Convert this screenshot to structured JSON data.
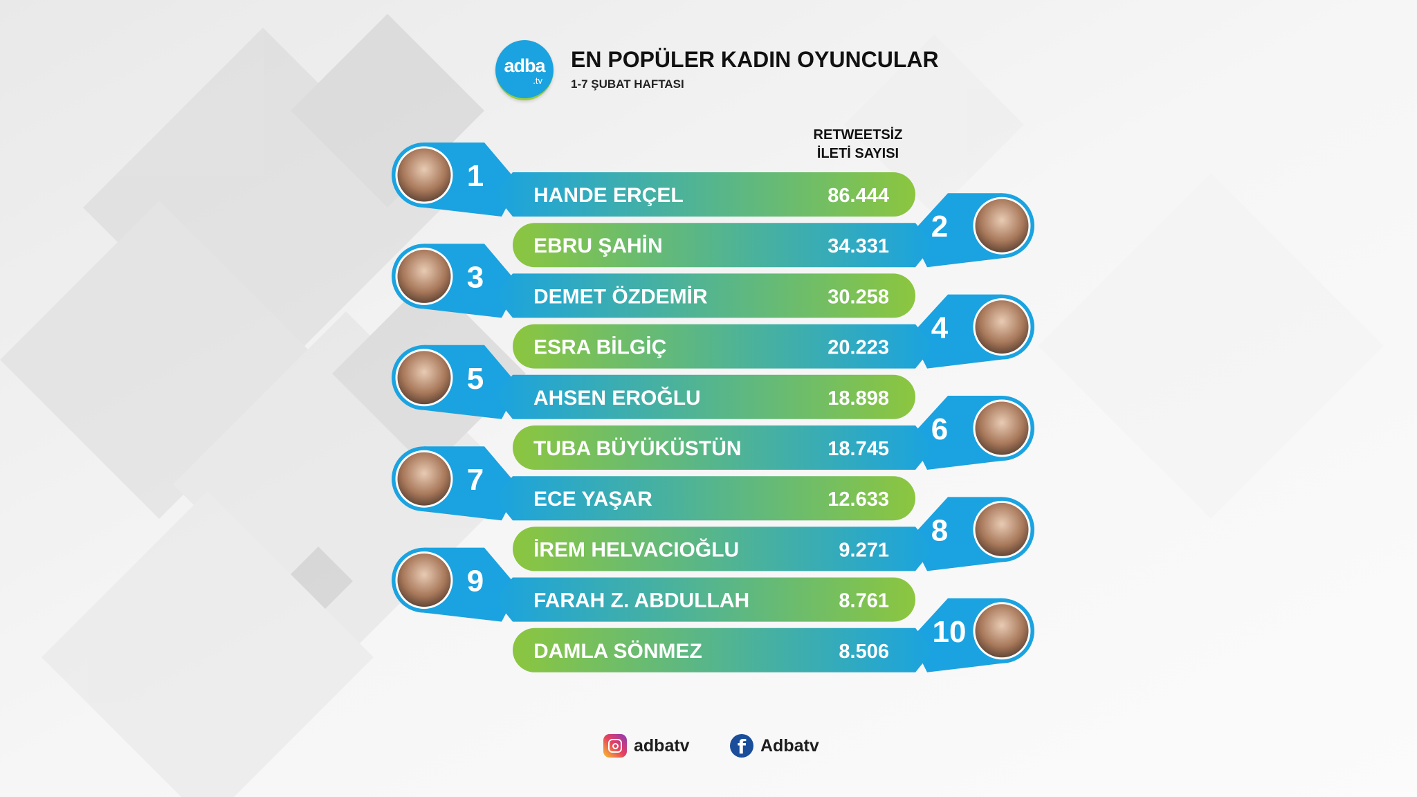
{
  "header": {
    "logo_text": "adba",
    "logo_sub": ".tv",
    "title": "EN POPÜLER KADIN OYUNCULAR",
    "subtitle": "1-7 ŞUBAT HAFTASI"
  },
  "column_header": {
    "line1": "RETWEETSİZ",
    "line2": "İLETİ SAYISI"
  },
  "colors": {
    "blue": "#1aa3e0",
    "green": "#8cc63f",
    "text": "#ffffff"
  },
  "chart_data": {
    "type": "bar",
    "title": "EN POPÜLER KADIN OYUNCULAR",
    "subtitle": "1-7 ŞUBAT HAFTASI",
    "ylabel": "RETWEETSİZ İLETİ SAYISI",
    "categories": [
      "HANDE ERÇEL",
      "EBRU ŞAHİN",
      "DEMET ÖZDEMİR",
      "ESRA BİLGİÇ",
      "AHSEN EROĞLU",
      "TUBA BÜYÜKÜSTÜN",
      "ECE YAŞAR",
      "İREM HELVACIOĞLU",
      "FARAH Z. ABDULLAH",
      "DAMLA SÖNMEZ"
    ],
    "ranks": [
      "1",
      "2",
      "3",
      "4",
      "5",
      "6",
      "7",
      "8",
      "9",
      "10"
    ],
    "values": [
      86444,
      34331,
      30258,
      20223,
      18898,
      18745,
      12633,
      9271,
      8761,
      8506
    ],
    "value_labels": [
      "86.444",
      "34.331",
      "30.258",
      "20.223",
      "18.898",
      "18.745",
      "12.633",
      "9.271",
      "8.761",
      "8.506"
    ]
  },
  "footer": {
    "instagram": "adbatv",
    "facebook": "Adbatv"
  }
}
